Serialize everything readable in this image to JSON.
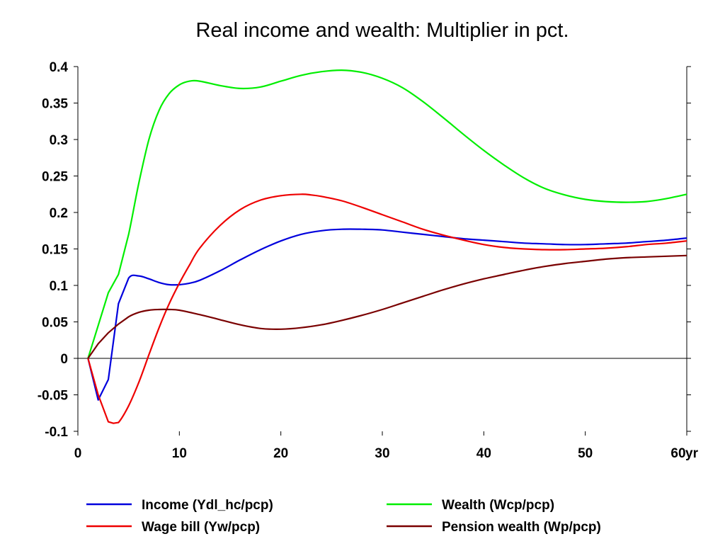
{
  "chart_data": {
    "type": "line",
    "title": "Real income and wealth: Multiplier in pct.",
    "xlabel": "",
    "ylabel": "",
    "x_unit_label": "yr",
    "xlim": [
      0,
      60
    ],
    "ylim": [
      -0.1,
      0.4
    ],
    "x_ticks": [
      0,
      10,
      20,
      30,
      40,
      50,
      60
    ],
    "y_ticks": [
      -0.1,
      -0.05,
      0,
      0.05,
      0.1,
      0.15,
      0.2,
      0.25,
      0.3,
      0.35,
      0.4
    ],
    "y_tick_labels": [
      "-0.1",
      "-0.05",
      "0",
      "0.05",
      "0.1",
      "0.15",
      "0.2",
      "0.25",
      "0.3",
      "0.35",
      "0.4"
    ],
    "zero_line": true,
    "grid": false,
    "legend_position": "bottom",
    "series": [
      {
        "name": "Income (Ydl_hc/pcp)",
        "color": "#0000dd",
        "x": [
          1,
          2,
          3,
          4,
          5,
          6,
          7,
          8,
          9,
          10,
          11,
          12,
          14,
          16,
          18,
          20,
          22,
          24,
          26,
          28,
          30,
          32,
          34,
          36,
          38,
          40,
          42,
          44,
          46,
          48,
          50,
          52,
          54,
          56,
          58,
          60
        ],
        "y": [
          0,
          -0.057,
          -0.029,
          0.075,
          0.11,
          0.113,
          0.109,
          0.104,
          0.101,
          0.101,
          0.103,
          0.107,
          0.12,
          0.135,
          0.149,
          0.161,
          0.17,
          0.175,
          0.177,
          0.177,
          0.176,
          0.173,
          0.17,
          0.167,
          0.164,
          0.162,
          0.16,
          0.158,
          0.157,
          0.156,
          0.156,
          0.157,
          0.158,
          0.16,
          0.162,
          0.165
        ]
      },
      {
        "name": "Wage bill (Yw/pcp)",
        "color": "#ee0000",
        "x": [
          1,
          2,
          3,
          3.5,
          4,
          5,
          6,
          7,
          8,
          9,
          10,
          11,
          12,
          14,
          16,
          18,
          20,
          22,
          23,
          24,
          26,
          28,
          30,
          32,
          34,
          36,
          38,
          40,
          42,
          44,
          46,
          48,
          50,
          52,
          54,
          56,
          58,
          60
        ],
        "y": [
          0,
          -0.05,
          -0.087,
          -0.089,
          -0.088,
          -0.065,
          -0.033,
          0.005,
          0.042,
          0.075,
          0.103,
          0.128,
          0.151,
          0.182,
          0.204,
          0.217,
          0.223,
          0.225,
          0.224,
          0.222,
          0.216,
          0.207,
          0.197,
          0.187,
          0.177,
          0.169,
          0.162,
          0.156,
          0.152,
          0.15,
          0.149,
          0.149,
          0.15,
          0.151,
          0.153,
          0.156,
          0.158,
          0.161
        ]
      },
      {
        "name": "Wealth (Wcp/pcp)",
        "color": "#00ee00",
        "x": [
          1,
          2,
          3,
          4,
          5,
          6,
          7,
          8,
          9,
          10,
          11,
          12,
          14,
          16,
          18,
          20,
          22,
          24,
          26,
          28,
          30,
          32,
          34,
          36,
          38,
          40,
          42,
          44,
          46,
          48,
          50,
          52,
          54,
          56,
          58,
          60
        ],
        "y": [
          0,
          0.045,
          0.09,
          0.115,
          0.17,
          0.24,
          0.3,
          0.34,
          0.363,
          0.375,
          0.38,
          0.38,
          0.374,
          0.37,
          0.372,
          0.38,
          0.388,
          0.393,
          0.395,
          0.392,
          0.384,
          0.371,
          0.352,
          0.33,
          0.307,
          0.285,
          0.265,
          0.247,
          0.233,
          0.224,
          0.218,
          0.215,
          0.214,
          0.215,
          0.219,
          0.225
        ]
      },
      {
        "name": "Pension wealth (Wp/pcp)",
        "color": "#7a0000",
        "x": [
          1,
          2,
          3,
          4,
          5,
          6,
          7,
          8,
          9,
          10,
          12,
          14,
          16,
          18,
          20,
          22,
          24,
          26,
          28,
          30,
          32,
          34,
          36,
          38,
          40,
          42,
          44,
          46,
          48,
          50,
          52,
          54,
          56,
          58,
          60
        ],
        "y": [
          0,
          0.02,
          0.035,
          0.047,
          0.057,
          0.063,
          0.066,
          0.067,
          0.067,
          0.066,
          0.06,
          0.053,
          0.046,
          0.041,
          0.04,
          0.042,
          0.046,
          0.052,
          0.059,
          0.067,
          0.076,
          0.085,
          0.094,
          0.102,
          0.109,
          0.115,
          0.121,
          0.126,
          0.13,
          0.133,
          0.136,
          0.138,
          0.139,
          0.14,
          0.141
        ]
      }
    ]
  }
}
